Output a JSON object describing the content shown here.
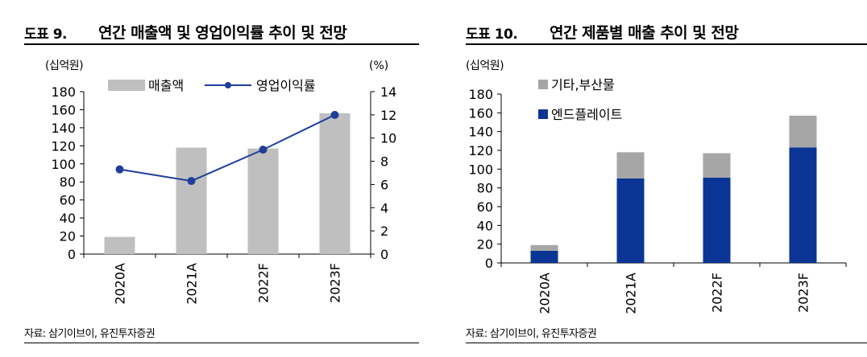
{
  "left": {
    "figure_no": "도표 9.",
    "title": "연간 매출액 및 영업이익률 추이 및 전망",
    "source": "자료: 삼기이브이, 유진투자증권"
  },
  "right": {
    "figure_no": "도표 10.",
    "title": "연간 제품별 매출 추이 및 전망",
    "source": "자료: 삼기이브이, 유진투자증권"
  },
  "colors": {
    "bar_gray": "#bfbfbf",
    "line_navy": "#1f3e99",
    "bar_navy": "#0b3595",
    "stack_gray": "#a6a6a6"
  },
  "chart_data": [
    {
      "type": "bar",
      "combo_line": true,
      "categories": [
        "2020A",
        "2021A",
        "2022F",
        "2023F"
      ],
      "series": [
        {
          "name": "매출액",
          "type": "bar",
          "axis": "left",
          "values": [
            19,
            118,
            117,
            156
          ]
        },
        {
          "name": "영업이익률",
          "type": "line",
          "axis": "right",
          "values": [
            7.3,
            6.3,
            9.0,
            12.0
          ]
        }
      ],
      "left_unit": "(십억원)",
      "right_unit": "(%)",
      "ylim": [
        0,
        180
      ],
      "y_ticks": [
        "0",
        "20",
        "40",
        "60",
        "80",
        "100",
        "120",
        "140",
        "160",
        "180"
      ],
      "y2lim": [
        0,
        14
      ],
      "y2_ticks": [
        "0",
        "2",
        "4",
        "6",
        "8",
        "10",
        "12",
        "14"
      ],
      "legend_position": "top",
      "grid": false
    },
    {
      "type": "bar",
      "stacked": true,
      "categories": [
        "2020A",
        "2021A",
        "2022F",
        "2023F"
      ],
      "series": [
        {
          "name": "엔드플레이트",
          "values": [
            13,
            90,
            91,
            123
          ]
        },
        {
          "name": "기타,부산물",
          "values": [
            6,
            28,
            26,
            34
          ]
        }
      ],
      "left_unit": "(십억원)",
      "ylim": [
        0,
        180
      ],
      "y_ticks": [
        "0",
        "20",
        "40",
        "60",
        "80",
        "100",
        "120",
        "140",
        "160",
        "180"
      ],
      "legend_position": "top-left",
      "grid": false
    }
  ]
}
